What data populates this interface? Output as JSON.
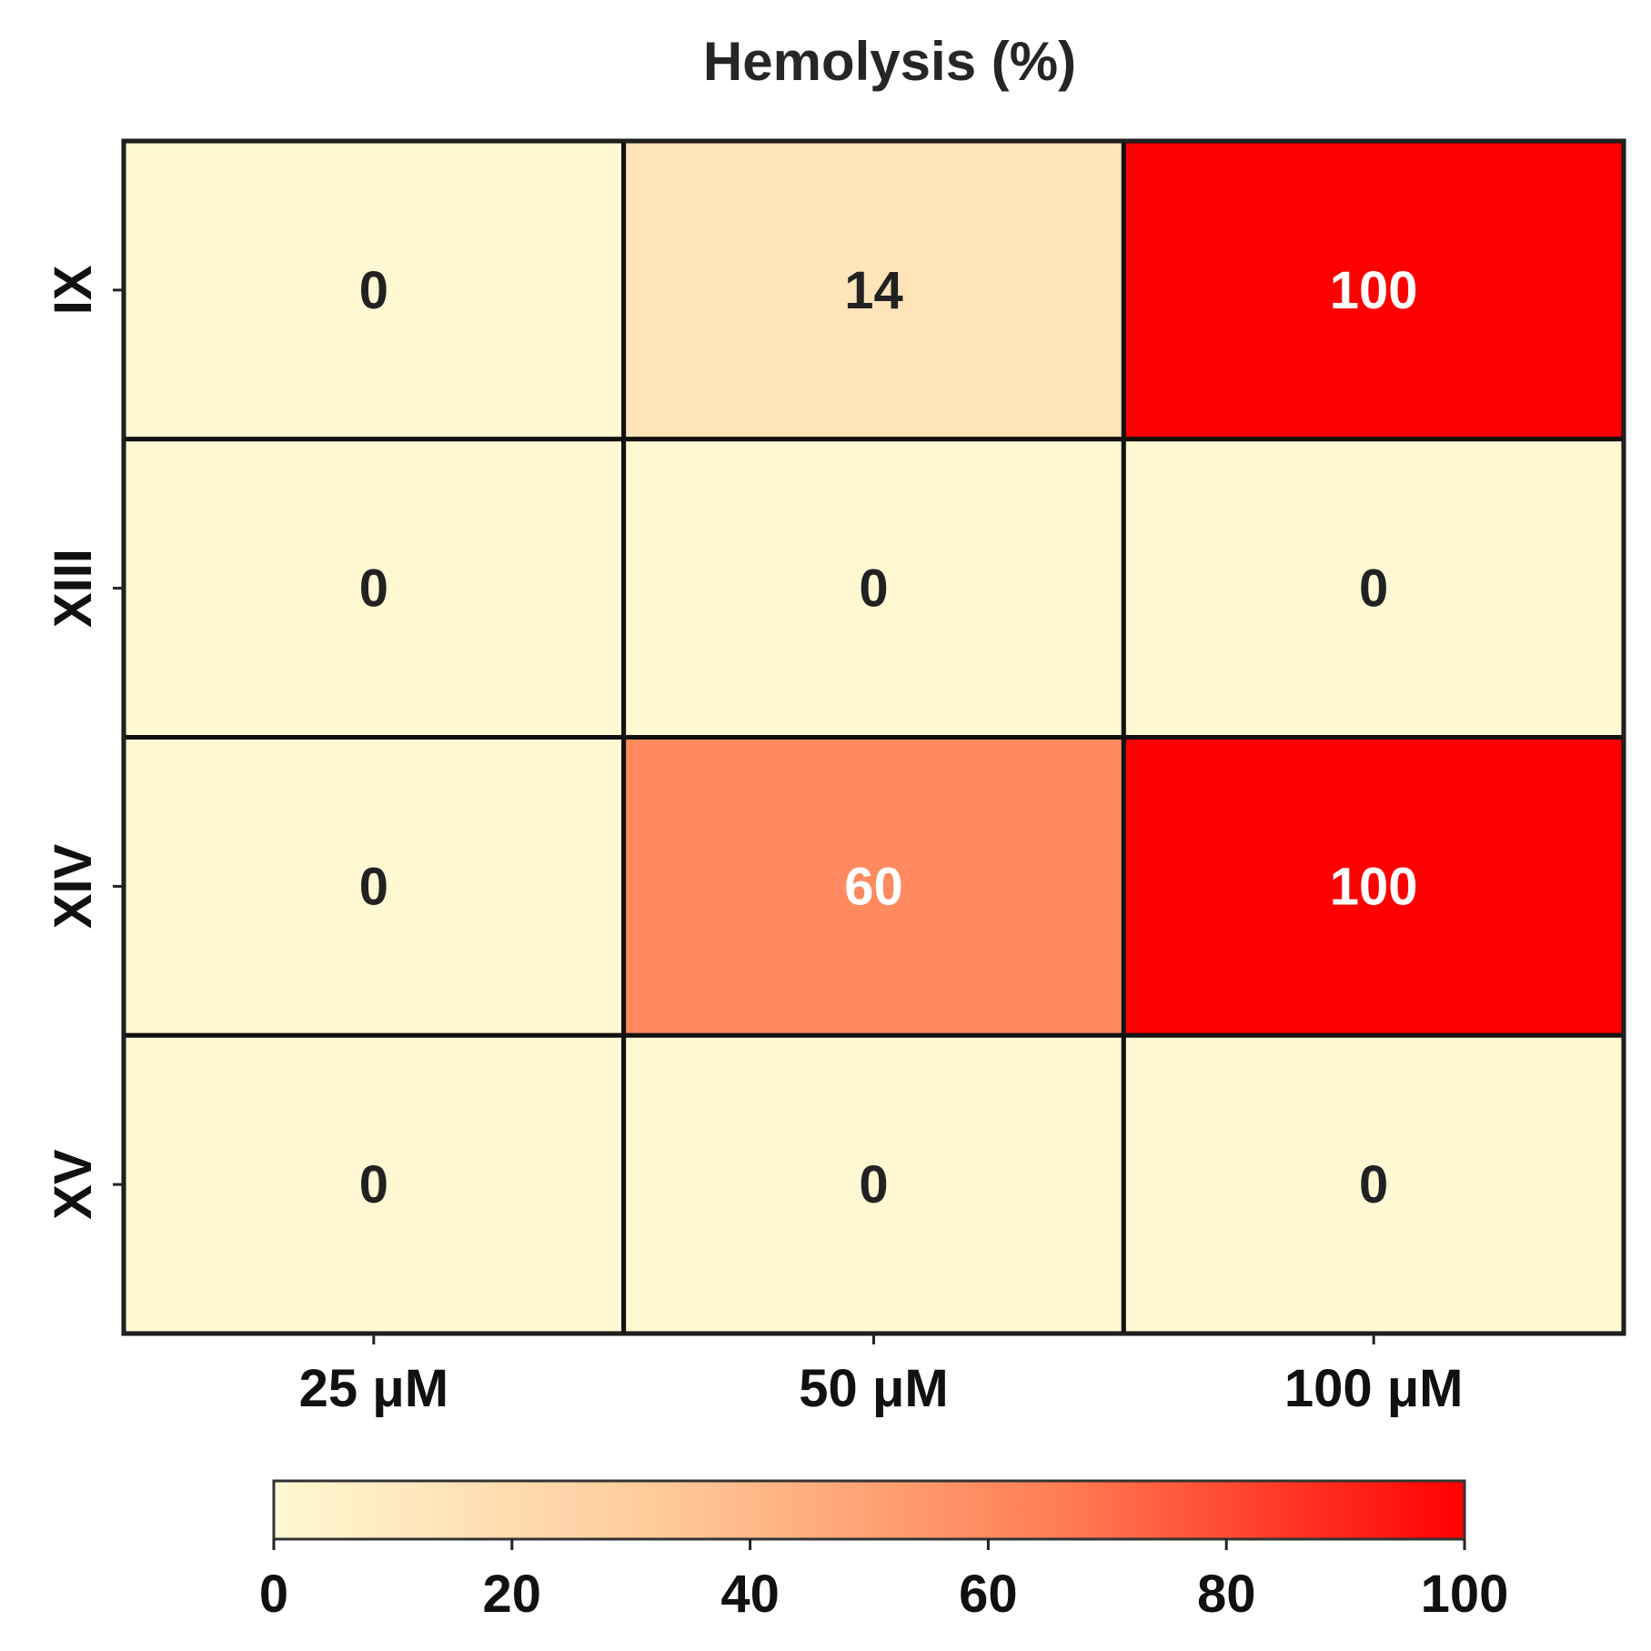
{
  "chart_data": {
    "type": "heatmap",
    "title": "Hemolysis  (%)",
    "x_categories": [
      "25 μM",
      "50 μM",
      "100 μM"
    ],
    "y_categories": [
      "IX",
      "XIII",
      "XIV",
      "XV"
    ],
    "values": [
      [
        0,
        14,
        100
      ],
      [
        0,
        0,
        0
      ],
      [
        0,
        60,
        100
      ],
      [
        0,
        0,
        0
      ]
    ],
    "colorbar": {
      "min": 0,
      "max": 100,
      "ticks": [
        0,
        20,
        40,
        60,
        80,
        100
      ],
      "orientation": "horizontal",
      "placement": "bottom"
    },
    "colormap": {
      "stops": [
        "#fff8d2",
        "#ffc897",
        "#ff7b52",
        "#ff0000"
      ],
      "low_text_color": "#222222",
      "high_text_color": "#ffffff"
    }
  }
}
